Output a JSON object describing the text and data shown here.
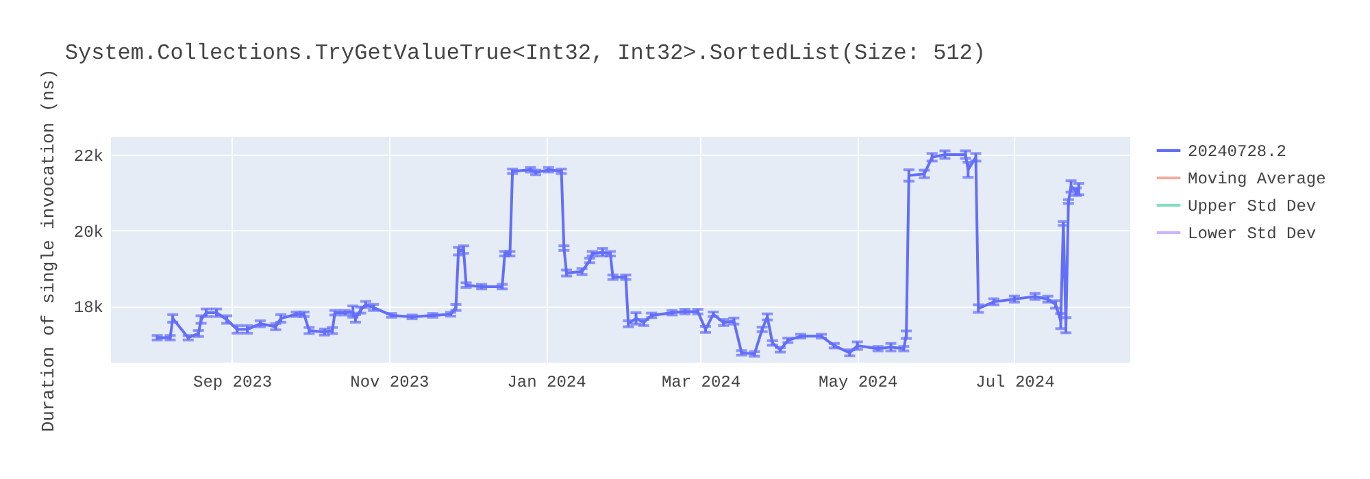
{
  "chart_data": {
    "type": "line",
    "title": "System.Collections.TryGetValueTrue<Int32, Int32>.SortedList(Size: 512)",
    "ylabel": "Duration of single invocation (ns)",
    "x": [
      "2023-08-03",
      "2023-08-08",
      "2023-08-09",
      "2023-08-15",
      "2023-08-19",
      "2023-08-20",
      "2023-08-22",
      "2023-08-26",
      "2023-08-30",
      "2023-09-03",
      "2023-09-07",
      "2023-09-12",
      "2023-09-18",
      "2023-09-20",
      "2023-09-26",
      "2023-09-29",
      "2023-10-01",
      "2023-10-07",
      "2023-10-10",
      "2023-10-11",
      "2023-10-15",
      "2023-10-18",
      "2023-10-19",
      "2023-10-21",
      "2023-10-23",
      "2023-10-26",
      "2023-11-02",
      "2023-11-10",
      "2023-11-18",
      "2023-11-25",
      "2023-11-27",
      "2023-11-28",
      "2023-11-30",
      "2023-12-01",
      "2023-12-07",
      "2023-12-15",
      "2023-12-16",
      "2023-12-18",
      "2023-12-19",
      "2023-12-26",
      "2023-12-28",
      "2024-01-02",
      "2024-01-07",
      "2024-01-08",
      "2024-01-09",
      "2024-01-15",
      "2024-01-18",
      "2024-01-19",
      "2024-01-23",
      "2024-01-26",
      "2024-01-27",
      "2024-02-01",
      "2024-02-02",
      "2024-02-05",
      "2024-02-08",
      "2024-02-11",
      "2024-02-19",
      "2024-02-24",
      "2024-02-29",
      "2024-03-03",
      "2024-03-06",
      "2024-03-10",
      "2024-03-14",
      "2024-03-17",
      "2024-03-22",
      "2024-03-25",
      "2024-03-27",
      "2024-03-29",
      "2024-04-01",
      "2024-04-04",
      "2024-04-09",
      "2024-04-17",
      "2024-04-22",
      "2024-04-28",
      "2024-05-01",
      "2024-05-09",
      "2024-05-14",
      "2024-05-19",
      "2024-05-20",
      "2024-05-21",
      "2024-05-27",
      "2024-05-30",
      "2024-06-04",
      "2024-06-12",
      "2024-06-13",
      "2024-06-16",
      "2024-06-17",
      "2024-06-23",
      "2024-07-01",
      "2024-07-09",
      "2024-07-14",
      "2024-07-17",
      "2024-07-19",
      "2024-07-20",
      "2024-07-21",
      "2024-07-22",
      "2024-07-23",
      "2024-07-25",
      "2024-07-26"
    ],
    "series": [
      {
        "name": "20240728.2",
        "color": "#636efa",
        "values": [
          17160,
          17160,
          17670,
          17160,
          17270,
          17640,
          17820,
          17820,
          17640,
          17380,
          17380,
          17530,
          17450,
          17670,
          17780,
          17780,
          17350,
          17310,
          17350,
          17820,
          17820,
          17850,
          17670,
          17890,
          18040,
          17960,
          17750,
          17710,
          17750,
          17780,
          17960,
          19450,
          19490,
          18550,
          18510,
          18510,
          19380,
          19380,
          21560,
          21600,
          21530,
          21600,
          21560,
          19530,
          18870,
          18910,
          19200,
          19380,
          19420,
          19380,
          18760,
          18760,
          17530,
          17670,
          17560,
          17750,
          17820,
          17850,
          17850,
          17380,
          17780,
          17560,
          17600,
          16760,
          16730,
          17380,
          17710,
          17020,
          16840,
          17090,
          17200,
          17200,
          16950,
          16760,
          16950,
          16870,
          16910,
          16870,
          17240,
          21450,
          21490,
          21930,
          22000,
          22000,
          21600,
          21930,
          17930,
          18110,
          18180,
          18250,
          18180,
          18040,
          17600,
          20180,
          17490,
          20760,
          21160,
          21020,
          21090
        ],
        "errors": [
          60,
          60,
          100,
          60,
          80,
          100,
          100,
          100,
          100,
          100,
          100,
          80,
          80,
          100,
          60,
          60,
          80,
          80,
          80,
          60,
          60,
          150,
          100,
          80,
          80,
          80,
          50,
          50,
          50,
          50,
          80,
          100,
          100,
          60,
          60,
          60,
          60,
          60,
          60,
          60,
          60,
          60,
          60,
          60,
          80,
          80,
          60,
          60,
          100,
          60,
          60,
          60,
          80,
          150,
          80,
          60,
          60,
          60,
          60,
          80,
          60,
          80,
          80,
          60,
          60,
          60,
          80,
          60,
          60,
          60,
          50,
          50,
          60,
          80,
          100,
          60,
          100,
          60,
          100,
          150,
          100,
          100,
          100,
          100,
          200,
          100,
          100,
          80,
          80,
          80,
          80,
          100,
          200,
          50,
          200,
          50,
          150,
          100,
          150
        ]
      },
      {
        "name": "Moving Average",
        "color": "#f4a99b",
        "values": [
          null,
          null,
          null,
          null,
          null,
          null,
          null,
          null,
          null,
          null,
          null,
          null,
          null,
          null,
          null,
          null,
          null,
          null,
          null,
          null,
          null,
          null,
          null,
          null,
          null,
          null,
          null,
          null,
          null,
          null,
          null,
          null,
          null,
          null,
          null,
          null,
          null,
          null,
          null,
          null,
          null,
          null,
          null,
          null,
          null,
          null,
          null,
          null,
          null,
          null,
          null,
          null,
          null,
          null,
          null,
          null,
          null,
          null,
          null,
          null,
          null,
          null,
          null,
          null,
          null,
          null,
          null,
          null,
          null,
          null,
          null,
          null,
          null,
          null,
          null,
          null,
          null,
          null,
          null,
          null,
          null,
          null,
          null,
          null,
          null,
          null,
          null,
          null,
          null,
          null,
          null,
          null,
          null,
          null,
          null,
          null,
          null,
          null,
          null
        ]
      },
      {
        "name": "Upper Std Dev",
        "color": "#80e1bd",
        "values": [
          null,
          null,
          null,
          null,
          null,
          null,
          null,
          null,
          null,
          null,
          null,
          null,
          null,
          null,
          null,
          null,
          null,
          null,
          null,
          null,
          null,
          null,
          null,
          null,
          null,
          null,
          null,
          null,
          null,
          null,
          null,
          null,
          null,
          null,
          null,
          null,
          null,
          null,
          null,
          null,
          null,
          null,
          null,
          null,
          null,
          null,
          null,
          null,
          null,
          null,
          null,
          null,
          null,
          null,
          null,
          null,
          null,
          null,
          null,
          null,
          null,
          null,
          null,
          null,
          null,
          null,
          null,
          null,
          null,
          null,
          null,
          null,
          null,
          null,
          null,
          null,
          null,
          null,
          null,
          null,
          null,
          null,
          null,
          null,
          null,
          null,
          null,
          null,
          null,
          null,
          null,
          null,
          null,
          null,
          null,
          null,
          null,
          null,
          null
        ]
      },
      {
        "name": "Lower Std Dev",
        "color": "#c9b6fb",
        "values": [
          null,
          null,
          null,
          null,
          null,
          null,
          null,
          null,
          null,
          null,
          null,
          null,
          null,
          null,
          null,
          null,
          null,
          null,
          null,
          null,
          null,
          null,
          null,
          null,
          null,
          null,
          null,
          null,
          null,
          null,
          null,
          null,
          null,
          null,
          null,
          null,
          null,
          null,
          null,
          null,
          null,
          null,
          null,
          null,
          null,
          null,
          null,
          null,
          null,
          null,
          null,
          null,
          null,
          null,
          null,
          null,
          null,
          null,
          null,
          null,
          null,
          null,
          null,
          null,
          null,
          null,
          null,
          null,
          null,
          null,
          null,
          null,
          null,
          null,
          null,
          null,
          null,
          null,
          null,
          null,
          null,
          null,
          null,
          null,
          null,
          null,
          null,
          null,
          null,
          null,
          null,
          null,
          null,
          null,
          null,
          null,
          null,
          null,
          null
        ]
      }
    ],
    "xlim": [
      "2023-07-16",
      "2024-08-15"
    ],
    "xticks": [
      {
        "value": "2023-09-01",
        "label": "Sep 2023"
      },
      {
        "value": "2023-11-01",
        "label": "Nov 2023"
      },
      {
        "value": "2024-01-01",
        "label": "Jan 2024"
      },
      {
        "value": "2024-03-01",
        "label": "Mar 2024"
      },
      {
        "value": "2024-05-01",
        "label": "May 2024"
      },
      {
        "value": "2024-07-01",
        "label": "Jul 2024"
      }
    ],
    "ylim": [
      16500,
      22470
    ],
    "yticks": [
      {
        "value": 18000,
        "label": "18k"
      },
      {
        "value": 20000,
        "label": "20k"
      },
      {
        "value": 22000,
        "label": "22k"
      }
    ],
    "grid": true,
    "legend": "top right"
  }
}
